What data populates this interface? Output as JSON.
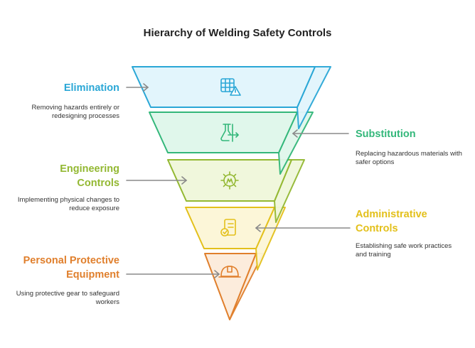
{
  "title": "Hierarchy of Welding Safety Controls",
  "levels": [
    {
      "heading_lines": [
        "Elimination"
      ],
      "description_lines": [
        "Removing hazards entirely or",
        "redesigning processes"
      ],
      "icon": "grid-warning-icon",
      "color": "#2aa7d6",
      "fill": "#e2f5fc"
    },
    {
      "heading_lines": [
        "Substitution"
      ],
      "description_lines": [
        "Replacing hazardous materials with",
        "safer options"
      ],
      "icon": "flask-swap-icon",
      "color": "#33b77a",
      "fill": "#e0f7eb"
    },
    {
      "heading_lines": [
        "Engineering",
        "Controls"
      ],
      "description_lines": [
        "Implementing physical changes to",
        "reduce exposure"
      ],
      "icon": "gear-icon",
      "color": "#93b832",
      "fill": "#f0f7dc"
    },
    {
      "heading_lines": [
        "Administrative",
        "Controls"
      ],
      "description_lines": [
        "Establishing safe work practices",
        "and training"
      ],
      "icon": "document-check-icon",
      "color": "#e3c01b",
      "fill": "#fcf6d8"
    },
    {
      "heading_lines": [
        "Personal Protective",
        "Equipment"
      ],
      "description_lines": [
        "Using protective gear to safeguard",
        "workers"
      ],
      "icon": "hard-hat-icon",
      "color": "#e07f2c",
      "fill": "#fcecdc"
    }
  ]
}
